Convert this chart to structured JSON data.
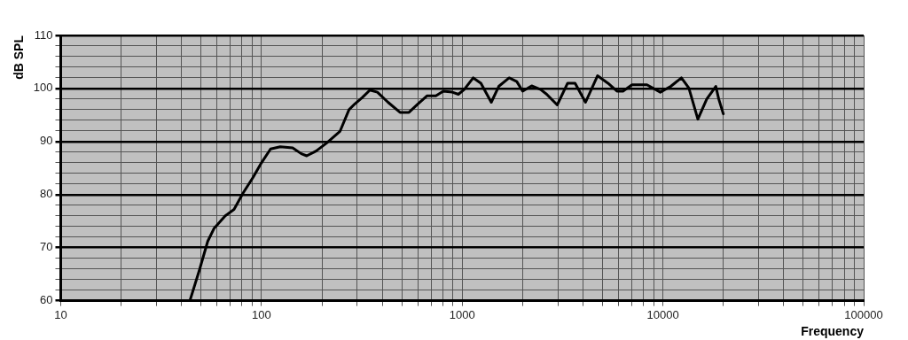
{
  "chart_data": {
    "type": "line",
    "xlabel": "Frequency",
    "ylabel": "dB SPL",
    "log": "x",
    "grid": true,
    "legend": false,
    "marker": "none",
    "line_style": "solid",
    "xlim": [
      10,
      100000
    ],
    "xticks": [
      10,
      {
        "value": 20,
        "label": null
      },
      {
        "value": 30,
        "label": null
      },
      {
        "value": 40,
        "label": null
      },
      {
        "value": 50,
        "label": null
      },
      {
        "value": 60,
        "label": null
      },
      {
        "value": 70,
        "label": null
      },
      {
        "value": 80,
        "label": null
      },
      {
        "value": 90,
        "label": null
      },
      100,
      {
        "value": 200,
        "label": null
      },
      {
        "value": 300,
        "label": null
      },
      {
        "value": 400,
        "label": null
      },
      {
        "value": 500,
        "label": null
      },
      {
        "value": 600,
        "label": null
      },
      {
        "value": 700,
        "label": null
      },
      {
        "value": 800,
        "label": null
      },
      {
        "value": 900,
        "label": null
      },
      1000,
      {
        "value": 2000,
        "label": null
      },
      {
        "value": 3000,
        "label": null
      },
      {
        "value": 4000,
        "label": null
      },
      {
        "value": 5000,
        "label": null
      },
      {
        "value": 6000,
        "label": null
      },
      {
        "value": 7000,
        "label": null
      },
      {
        "value": 8000,
        "label": null
      },
      {
        "value": 9000,
        "label": null
      },
      10000,
      {
        "value": 20000,
        "label": null
      },
      {
        "value": 30000,
        "label": null
      },
      {
        "value": 40000,
        "label": null
      },
      {
        "value": 50000,
        "label": null
      },
      {
        "value": 60000,
        "label": null
      },
      {
        "value": 70000,
        "label": null
      },
      {
        "value": 80000,
        "label": null
      },
      {
        "value": 90000,
        "label": null
      },
      100000
    ],
    "ylim": [
      60,
      110
    ],
    "yticks": [
      60,
      {
        "value": 62,
        "label": null
      },
      {
        "value": 64,
        "label": null
      },
      {
        "value": 66,
        "label": null
      },
      {
        "value": 68,
        "label": null
      },
      70,
      {
        "value": 72,
        "label": null
      },
      {
        "value": 74,
        "label": null
      },
      {
        "value": 76,
        "label": null
      },
      {
        "value": 78,
        "label": null
      },
      80,
      {
        "value": 82,
        "label": null
      },
      {
        "value": 84,
        "label": null
      },
      {
        "value": 86,
        "label": null
      },
      {
        "value": 88,
        "label": null
      },
      90,
      {
        "value": 92,
        "label": null
      },
      {
        "value": 94,
        "label": null
      },
      {
        "value": 96,
        "label": null
      },
      {
        "value": 98,
        "label": null
      },
      100,
      {
        "value": 102,
        "label": null
      },
      {
        "value": 104,
        "label": null
      },
      {
        "value": 106,
        "label": null
      },
      {
        "value": 108,
        "label": null
      },
      110
    ],
    "series": [
      {
        "color": "#000000",
        "x": [
          44,
          49,
          54,
          58,
          66,
          73,
          81,
          91,
          100,
          111,
          124,
          143,
          158,
          168,
          187,
          211,
          246,
          273,
          292,
          318,
          347,
          378,
          427,
          490,
          543,
          602,
          667,
          739,
          805,
          893,
          957,
          1023,
          1135,
          1239,
          1396,
          1521,
          1714,
          1870,
          2001,
          2218,
          2460,
          2637,
          2974,
          3352,
          3650,
          4115,
          4722,
          5322,
          5902,
          6324,
          7015,
          8322,
          9707,
          10940,
          12360,
          13460,
          14930,
          16530,
          18340,
          18970,
          19990
        ],
        "values": [
          60,
          65.7,
          71.2,
          73.6,
          76,
          77.2,
          80.3,
          83.3,
          86,
          88.6,
          89,
          88.8,
          87.7,
          87.3,
          88.2,
          89.7,
          91.9,
          96,
          97.1,
          98.3,
          99.7,
          99.3,
          97.4,
          95.5,
          95.5,
          97.1,
          98.6,
          98.6,
          99.5,
          99.3,
          98.9,
          99.8,
          102,
          101,
          97.4,
          100.4,
          102,
          101.3,
          99.5,
          100.5,
          99.8,
          98.9,
          96.9,
          101,
          101,
          97.4,
          102.4,
          101,
          99.5,
          99.5,
          100.7,
          100.7,
          99.3,
          100.4,
          102,
          100.1,
          94.2,
          98,
          100.4,
          98,
          95.2
        ]
      }
    ]
  }
}
